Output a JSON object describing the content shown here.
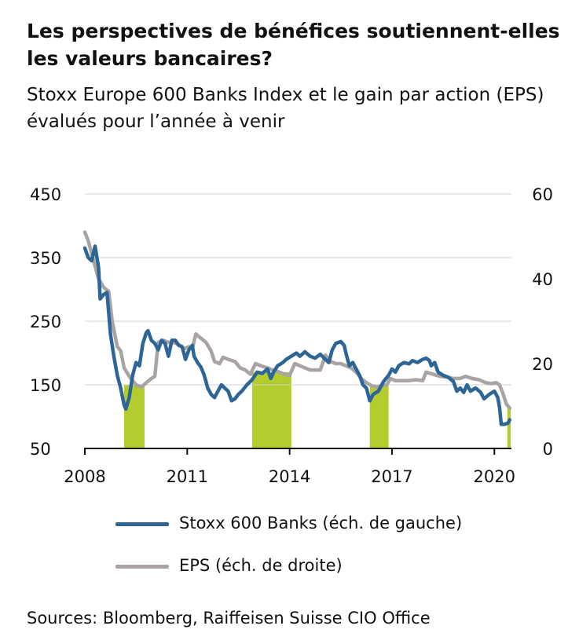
{
  "title": "Les perspectives de bénéfices soutiennent-elles les valeurs bancaires?",
  "subtitle": "Stoxx Europe 600 Banks Index et le gain par action (EPS) évalués pour l’année à venir",
  "source": "Sources: Bloomberg, Raiffeisen Suisse CIO Office",
  "colors": {
    "banks": "#2d6596",
    "eps": "#aaa3a3",
    "highlight": "#b5cc2e",
    "grid": "#d0d0d0"
  },
  "chart_data": {
    "type": "line",
    "x_ticks": [
      2008,
      2011,
      2014,
      2017,
      2020
    ],
    "x_tick_labels": [
      "2008",
      "2011",
      "2014",
      "2017",
      "2020"
    ],
    "xlim": [
      2008.0,
      2020.5
    ],
    "y_left": {
      "ylim": [
        50,
        450
      ],
      "ticks": [
        50,
        150,
        250,
        350,
        450
      ],
      "tick_labels": [
        "50",
        "150",
        "250",
        "350",
        "450"
      ]
    },
    "y_right": {
      "ylim": [
        0,
        60
      ],
      "ticks": [
        0,
        20,
        40,
        60
      ],
      "tick_labels": [
        "0",
        "20",
        "40",
        "60"
      ]
    },
    "highlight_periods": [
      [
        2009.15,
        2009.75
      ],
      [
        2012.9,
        2014.05
      ],
      [
        2016.35,
        2016.9
      ],
      [
        2020.38,
        2020.48
      ]
    ],
    "series": [
      {
        "name": "Stoxx 600 Banks (éch. de gauche)",
        "axis": "left",
        "points": [
          [
            2008.0,
            365
          ],
          [
            2008.1,
            350
          ],
          [
            2008.2,
            345
          ],
          [
            2008.3,
            368
          ],
          [
            2008.4,
            335
          ],
          [
            2008.45,
            285
          ],
          [
            2008.55,
            292
          ],
          [
            2008.65,
            295
          ],
          [
            2008.75,
            230
          ],
          [
            2008.85,
            195
          ],
          [
            2008.95,
            165
          ],
          [
            2009.05,
            145
          ],
          [
            2009.15,
            118
          ],
          [
            2009.2,
            112
          ],
          [
            2009.3,
            130
          ],
          [
            2009.4,
            165
          ],
          [
            2009.5,
            185
          ],
          [
            2009.6,
            180
          ],
          [
            2009.7,
            215
          ],
          [
            2009.8,
            232
          ],
          [
            2009.85,
            235
          ],
          [
            2009.95,
            220
          ],
          [
            2010.05,
            215
          ],
          [
            2010.15,
            205
          ],
          [
            2010.25,
            220
          ],
          [
            2010.35,
            215
          ],
          [
            2010.45,
            195
          ],
          [
            2010.55,
            220
          ],
          [
            2010.65,
            220
          ],
          [
            2010.75,
            212
          ],
          [
            2010.85,
            210
          ],
          [
            2010.95,
            190
          ],
          [
            2011.05,
            205
          ],
          [
            2011.15,
            212
          ],
          [
            2011.2,
            195
          ],
          [
            2011.3,
            185
          ],
          [
            2011.4,
            178
          ],
          [
            2011.5,
            165
          ],
          [
            2011.6,
            145
          ],
          [
            2011.7,
            135
          ],
          [
            2011.8,
            130
          ],
          [
            2011.9,
            140
          ],
          [
            2012.0,
            150
          ],
          [
            2012.1,
            145
          ],
          [
            2012.2,
            140
          ],
          [
            2012.3,
            125
          ],
          [
            2012.4,
            128
          ],
          [
            2012.5,
            135
          ],
          [
            2012.6,
            140
          ],
          [
            2012.75,
            150
          ],
          [
            2012.9,
            158
          ],
          [
            2013.05,
            170
          ],
          [
            2013.2,
            168
          ],
          [
            2013.35,
            175
          ],
          [
            2013.45,
            160
          ],
          [
            2013.55,
            172
          ],
          [
            2013.65,
            180
          ],
          [
            2013.8,
            185
          ],
          [
            2013.9,
            190
          ],
          [
            2014.05,
            195
          ],
          [
            2014.2,
            200
          ],
          [
            2014.3,
            195
          ],
          [
            2014.45,
            202
          ],
          [
            2014.6,
            195
          ],
          [
            2014.75,
            192
          ],
          [
            2014.9,
            198
          ],
          [
            2015.05,
            190
          ],
          [
            2015.15,
            185
          ],
          [
            2015.25,
            205
          ],
          [
            2015.35,
            215
          ],
          [
            2015.5,
            218
          ],
          [
            2015.6,
            212
          ],
          [
            2015.65,
            200
          ],
          [
            2015.75,
            180
          ],
          [
            2015.85,
            185
          ],
          [
            2015.95,
            175
          ],
          [
            2016.05,
            165
          ],
          [
            2016.15,
            150
          ],
          [
            2016.25,
            145
          ],
          [
            2016.35,
            125
          ],
          [
            2016.45,
            135
          ],
          [
            2016.6,
            140
          ],
          [
            2016.75,
            155
          ],
          [
            2016.9,
            165
          ],
          [
            2017.0,
            175
          ],
          [
            2017.1,
            170
          ],
          [
            2017.2,
            180
          ],
          [
            2017.35,
            185
          ],
          [
            2017.5,
            183
          ],
          [
            2017.6,
            188
          ],
          [
            2017.75,
            185
          ],
          [
            2017.9,
            190
          ],
          [
            2018.0,
            192
          ],
          [
            2018.1,
            188
          ],
          [
            2018.15,
            180
          ],
          [
            2018.25,
            185
          ],
          [
            2018.35,
            170
          ],
          [
            2018.5,
            165
          ],
          [
            2018.65,
            162
          ],
          [
            2018.8,
            155
          ],
          [
            2018.9,
            140
          ],
          [
            2019.0,
            145
          ],
          [
            2019.1,
            138
          ],
          [
            2019.2,
            150
          ],
          [
            2019.3,
            140
          ],
          [
            2019.45,
            145
          ],
          [
            2019.6,
            138
          ],
          [
            2019.7,
            128
          ],
          [
            2019.85,
            135
          ],
          [
            2020.0,
            140
          ],
          [
            2020.1,
            130
          ],
          [
            2020.15,
            115
          ],
          [
            2020.2,
            88
          ],
          [
            2020.3,
            88
          ],
          [
            2020.4,
            90
          ],
          [
            2020.45,
            95
          ]
        ]
      },
      {
        "name": "EPS (éch. de droite)",
        "axis": "right",
        "points": [
          [
            2008.0,
            51
          ],
          [
            2008.1,
            49
          ],
          [
            2008.2,
            46
          ],
          [
            2008.3,
            43
          ],
          [
            2008.4,
            40
          ],
          [
            2008.55,
            38
          ],
          [
            2008.7,
            37
          ],
          [
            2008.8,
            30
          ],
          [
            2008.95,
            24
          ],
          [
            2009.05,
            23
          ],
          [
            2009.15,
            19
          ],
          [
            2009.3,
            17
          ],
          [
            2009.5,
            15
          ],
          [
            2009.65,
            14.5
          ],
          [
            2009.8,
            15.5
          ],
          [
            2009.95,
            16.5
          ],
          [
            2010.05,
            17
          ],
          [
            2010.15,
            25
          ],
          [
            2010.3,
            25.5
          ],
          [
            2010.45,
            25
          ],
          [
            2010.6,
            25
          ],
          [
            2010.75,
            24.5
          ],
          [
            2010.9,
            23.5
          ],
          [
            2011.05,
            24
          ],
          [
            2011.15,
            23.5
          ],
          [
            2011.25,
            27
          ],
          [
            2011.4,
            26
          ],
          [
            2011.55,
            25
          ],
          [
            2011.7,
            23
          ],
          [
            2011.8,
            20.5
          ],
          [
            2011.95,
            20
          ],
          [
            2012.05,
            21.5
          ],
          [
            2012.2,
            21
          ],
          [
            2012.4,
            20.5
          ],
          [
            2012.55,
            19
          ],
          [
            2012.7,
            18.5
          ],
          [
            2012.85,
            17.5
          ],
          [
            2013.0,
            20
          ],
          [
            2013.15,
            19.5
          ],
          [
            2013.35,
            19
          ],
          [
            2013.5,
            18.5
          ],
          [
            2013.7,
            18
          ],
          [
            2013.85,
            17.5
          ],
          [
            2014.0,
            17.2
          ],
          [
            2014.15,
            20
          ],
          [
            2014.3,
            19.5
          ],
          [
            2014.45,
            19
          ],
          [
            2014.6,
            18.5
          ],
          [
            2014.75,
            18.5
          ],
          [
            2014.9,
            18.5
          ],
          [
            2015.05,
            22
          ],
          [
            2015.2,
            20.5
          ],
          [
            2015.35,
            20
          ],
          [
            2015.5,
            20
          ],
          [
            2015.65,
            19.5
          ],
          [
            2015.8,
            19
          ],
          [
            2015.95,
            18
          ],
          [
            2016.1,
            16.5
          ],
          [
            2016.25,
            15.5
          ],
          [
            2016.4,
            14.8
          ],
          [
            2016.55,
            14.5
          ],
          [
            2016.7,
            14.8
          ],
          [
            2016.85,
            15
          ],
          [
            2016.95,
            16.5
          ],
          [
            2017.1,
            16
          ],
          [
            2017.3,
            16
          ],
          [
            2017.5,
            16
          ],
          [
            2017.7,
            16.2
          ],
          [
            2017.9,
            16
          ],
          [
            2018.0,
            18
          ],
          [
            2018.2,
            17.5
          ],
          [
            2018.4,
            17
          ],
          [
            2018.6,
            16.8
          ],
          [
            2018.8,
            16.5
          ],
          [
            2019.0,
            16.5
          ],
          [
            2019.15,
            17
          ],
          [
            2019.35,
            16.5
          ],
          [
            2019.55,
            16.2
          ],
          [
            2019.75,
            15.5
          ],
          [
            2019.9,
            15.3
          ],
          [
            2020.05,
            15.5
          ],
          [
            2020.15,
            15
          ],
          [
            2020.25,
            13
          ],
          [
            2020.35,
            10.5
          ],
          [
            2020.45,
            9.5
          ]
        ]
      }
    ]
  }
}
